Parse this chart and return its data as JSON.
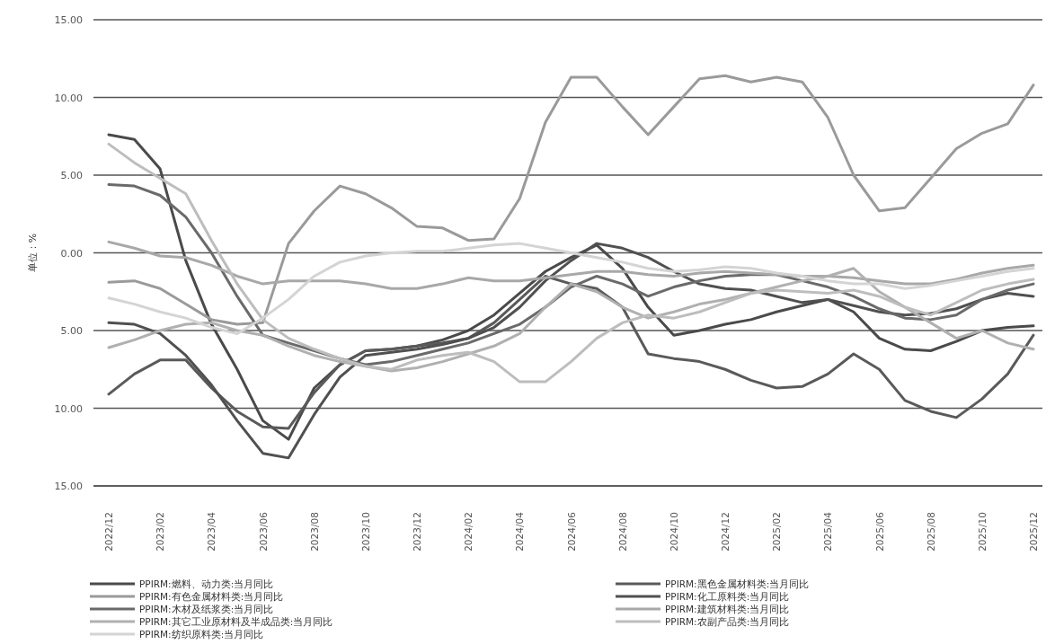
{
  "chart_data": {
    "type": "line",
    "ylabel": "单位：%",
    "categories": [
      "2022/12",
      null,
      "2023/02",
      null,
      "2023/04",
      null,
      "2023/06",
      null,
      "2023/08",
      null,
      "2023/10",
      null,
      "2023/12",
      null,
      "2024/02",
      null,
      "2024/04",
      null,
      "2024/06",
      null,
      "2024/08",
      null,
      "2024/10",
      null,
      "2024/12",
      null,
      "2025/02",
      null,
      "2025/04",
      null,
      "2025/06",
      null,
      "2025/08",
      null,
      "2025/10",
      null,
      "2025/12"
    ],
    "ylim": [
      -15,
      15
    ],
    "yticks": [
      {
        "value": 15,
        "label": "15.00"
      },
      {
        "value": 10,
        "label": "10.00"
      },
      {
        "value": 5,
        "label": "5.00"
      },
      {
        "value": 0,
        "label": "0.00"
      },
      {
        "value": -5,
        "label": "5.00"
      },
      {
        "value": -10,
        "label": "10.00"
      },
      {
        "value": -15,
        "label": "15.00"
      }
    ],
    "grid": "y",
    "legend": "bottom",
    "marker": "none",
    "line_style": "solid",
    "series": [
      {
        "name": "PPIRM:燃料、动力类:当月同比",
        "color": "#4a4a4a",
        "values": [
          7.6,
          7.3,
          5.4,
          -0.5,
          -4.6,
          -7.5,
          -10.8,
          -12.0,
          -8.7,
          -7.2,
          -6.3,
          -6.2,
          -6.0,
          -5.6,
          -5.0,
          -4.0,
          -2.6,
          -1.2,
          -0.3,
          0.5,
          -1.0,
          -3.5,
          -5.3,
          -5.0,
          -4.6,
          -4.3,
          -3.8,
          -3.4,
          -3.0,
          -3.8,
          -5.5,
          -6.2,
          -6.3,
          -5.7,
          -5.0,
          -4.8,
          -4.7
        ]
      },
      {
        "name": "PPIRM:黑色金属材料类:当月同比",
        "color": "#5a5a5a",
        "values": [
          -9.1,
          -7.8,
          -6.9,
          -6.9,
          -8.7,
          -10.2,
          -11.2,
          -11.3,
          -9.0,
          -7.2,
          -6.3,
          -6.2,
          -6.0,
          -5.8,
          -5.5,
          -4.5,
          -3.0,
          -1.5,
          -2.0,
          -2.3,
          -3.5,
          -6.5,
          -6.8,
          -7.0,
          -7.5,
          -8.2,
          -8.7,
          -8.6,
          -7.8,
          -6.5,
          -7.5,
          -9.5,
          -10.2,
          -10.6,
          -9.4,
          -7.8,
          -5.3
        ]
      },
      {
        "name": "PPIRM:有色金属材料类:当月同比",
        "color": "#9a9a9a",
        "values": [
          -1.9,
          -1.8,
          -2.3,
          -3.3,
          -4.3,
          -4.6,
          -4.5,
          0.6,
          2.7,
          4.3,
          3.8,
          2.9,
          1.7,
          1.6,
          0.8,
          0.9,
          3.5,
          8.4,
          11.3,
          11.3,
          9.4,
          7.6,
          9.4,
          11.2,
          11.4,
          11.0,
          11.3,
          11.0,
          8.7,
          5.0,
          2.7,
          2.9,
          4.8,
          6.7,
          7.7,
          8.3,
          10.8
        ]
      },
      {
        "name": "PPIRM:化工原料类:当月同比",
        "color": "#505050",
        "values": [
          -4.5,
          -4.6,
          -5.2,
          -6.6,
          -8.5,
          -10.8,
          -12.9,
          -13.2,
          -10.4,
          -8.0,
          -6.6,
          -6.4,
          -6.2,
          -5.9,
          -5.5,
          -4.8,
          -3.5,
          -1.8,
          -0.5,
          0.6,
          0.3,
          -0.3,
          -1.2,
          -2.0,
          -2.3,
          -2.4,
          -2.8,
          -3.2,
          -3.0,
          -3.4,
          -3.8,
          -4.0,
          -3.9,
          -3.6,
          -3.0,
          -2.6,
          -2.8
        ]
      },
      {
        "name": "PPIRM:木材及纸浆类:当月同比",
        "color": "#6a6a6a",
        "values": [
          4.4,
          4.3,
          3.7,
          2.3,
          0.0,
          -2.8,
          -5.3,
          -5.8,
          -6.3,
          -6.8,
          -7.2,
          -7.0,
          -6.6,
          -6.2,
          -5.8,
          -5.2,
          -4.6,
          -3.5,
          -2.2,
          -1.5,
          -2.0,
          -2.8,
          -2.2,
          -1.8,
          -1.5,
          -1.4,
          -1.4,
          -1.8,
          -2.2,
          -2.8,
          -3.6,
          -4.2,
          -4.3,
          -4.0,
          -3.0,
          -2.4,
          -2.0
        ]
      },
      {
        "name": "PPIRM:建筑材料类:当月同比",
        "color": "#a8a8a8",
        "values": [
          0.7,
          0.3,
          -0.2,
          -0.3,
          -0.8,
          -1.5,
          -2.0,
          -1.8,
          -1.8,
          -1.8,
          -2.0,
          -2.3,
          -2.3,
          -2.0,
          -1.6,
          -1.8,
          -1.8,
          -1.6,
          -1.4,
          -1.2,
          -1.2,
          -1.4,
          -1.5,
          -1.3,
          -1.2,
          -1.3,
          -1.4,
          -1.5,
          -1.5,
          -1.6,
          -1.8,
          -2.0,
          -2.0,
          -1.7,
          -1.3,
          -1.0,
          -0.8
        ]
      },
      {
        "name": "PPIRM:其它工业原材料及半成品类:当月同比",
        "color": "#b0b0b0",
        "values": [
          -6.1,
          -5.6,
          -5.0,
          -4.6,
          -4.5,
          -5.0,
          -5.3,
          -6.0,
          -6.6,
          -7.0,
          -7.3,
          -7.6,
          -7.4,
          -7.0,
          -6.5,
          -6.0,
          -5.2,
          -3.5,
          -2.0,
          -2.5,
          -3.5,
          -4.2,
          -3.8,
          -3.3,
          -3.0,
          -2.6,
          -2.2,
          -1.8,
          -1.5,
          -1.0,
          -2.5,
          -3.5,
          -4.5,
          -5.5,
          -5.0,
          -5.8,
          -6.2
        ]
      },
      {
        "name": "PPIRM:农副产品类:当月同比",
        "color": "#bdbdbd",
        "values": [
          7.0,
          5.8,
          4.8,
          3.8,
          0.8,
          -2.0,
          -4.3,
          -5.5,
          -6.2,
          -6.8,
          -7.3,
          -7.5,
          -6.9,
          -6.6,
          -6.4,
          -7.0,
          -8.3,
          -8.3,
          -7.0,
          -5.5,
          -4.5,
          -4.0,
          -4.2,
          -3.8,
          -3.2,
          -2.6,
          -2.4,
          -2.5,
          -2.6,
          -2.4,
          -2.8,
          -3.5,
          -4.0,
          -3.2,
          -2.4,
          -2.0,
          -1.7
        ]
      },
      {
        "name": "PPIRM:纺织原料类:当月同比",
        "color": "#d4d4d4",
        "values": [
          -2.9,
          -3.3,
          -3.8,
          -4.2,
          -4.8,
          -5.2,
          -4.2,
          -3.0,
          -1.5,
          -0.6,
          -0.2,
          0.0,
          0.1,
          0.1,
          0.3,
          0.5,
          0.6,
          0.3,
          0.0,
          -0.3,
          -0.6,
          -1.0,
          -1.2,
          -1.1,
          -0.9,
          -1.0,
          -1.3,
          -1.5,
          -1.8,
          -2.0,
          -2.0,
          -2.3,
          -2.1,
          -1.8,
          -1.5,
          -1.2,
          -1.0
        ]
      }
    ]
  }
}
